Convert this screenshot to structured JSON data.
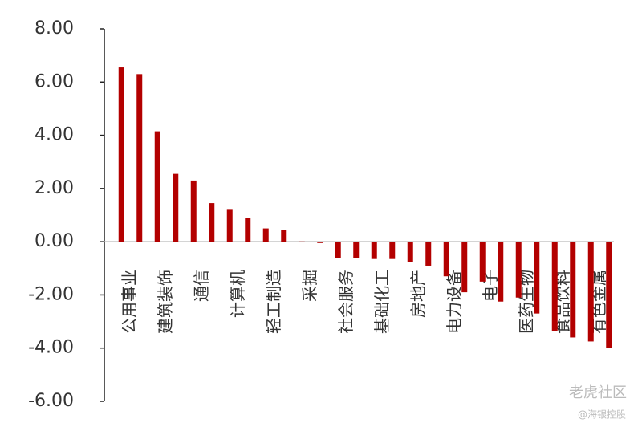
{
  "chart_data": {
    "type": "bar",
    "categories": [
      "公用事业",
      null,
      "建筑装饰",
      null,
      "通信",
      null,
      "计算机",
      null,
      "轻工制造",
      null,
      "采掘",
      null,
      "社会服务",
      null,
      "基础化工",
      null,
      "房地产",
      null,
      "电力设备",
      null,
      "电子",
      null,
      "医药生物",
      null,
      "食品饮料",
      null,
      "有色金属",
      null
    ],
    "values": [
      6.55,
      6.3,
      4.15,
      2.55,
      2.3,
      1.45,
      1.2,
      0.9,
      0.5,
      0.45,
      0.01,
      -0.05,
      -0.6,
      -0.6,
      -0.65,
      -0.65,
      -0.75,
      -0.9,
      -1.3,
      -1.9,
      -1.5,
      -2.25,
      -2.1,
      -2.7,
      -3.35,
      -3.6,
      -3.75,
      -4.0
    ],
    "color": "#b30000",
    "ylim": [
      -6,
      8
    ],
    "yticks": [
      {
        "value": -6,
        "label": "-6.00"
      },
      {
        "value": -4,
        "label": "-4.00"
      },
      {
        "value": -2,
        "label": "-2.00"
      },
      {
        "value": 0,
        "label": "0.00"
      },
      {
        "value": 2,
        "label": "2.00"
      },
      {
        "value": 4,
        "label": "4.00"
      },
      {
        "value": 6,
        "label": "6.00"
      },
      {
        "value": 8,
        "label": "8.00"
      }
    ],
    "watermark": "老虎社区",
    "watermark_source": "@海银控股"
  }
}
